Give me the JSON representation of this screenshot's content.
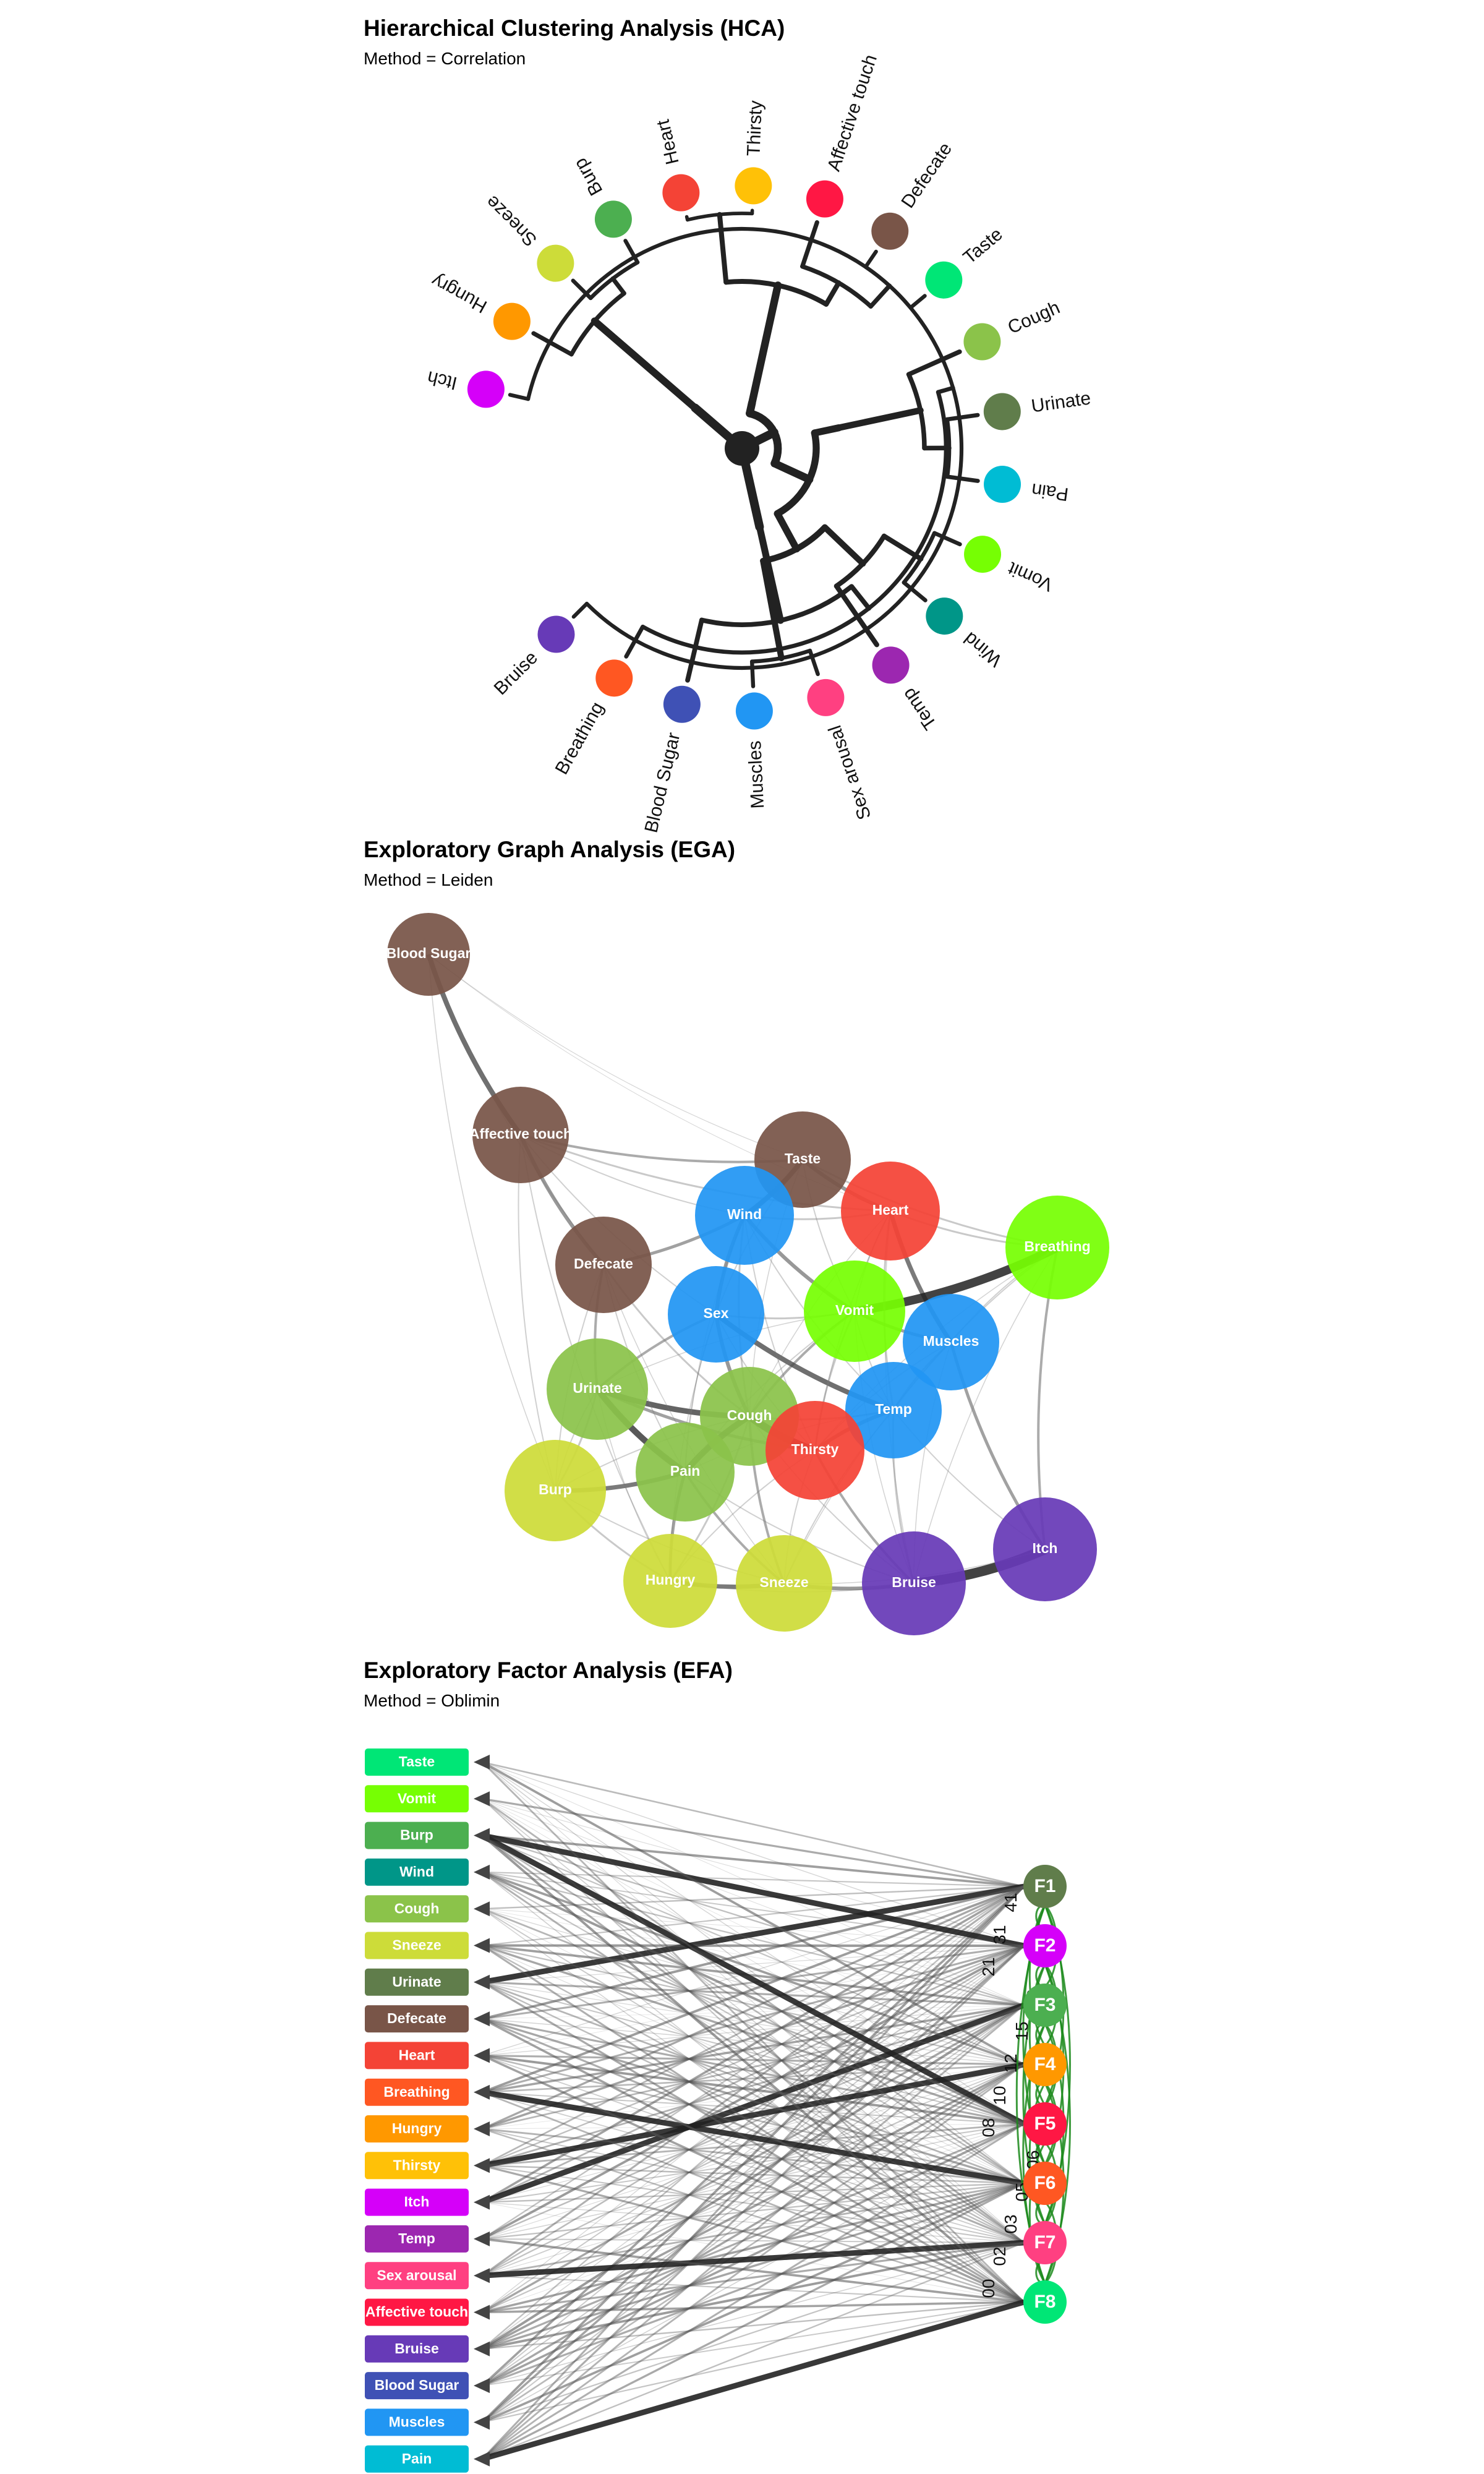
{
  "colors": {
    "Taste": "#00E676",
    "Vomit": "#76FF03",
    "Burp": "#4CAF50",
    "Wind": "#009688",
    "Cough": "#8BC34A",
    "Sneeze": "#CDDC39",
    "Urinate": "#607D4B",
    "Defecate": "#795548",
    "Heart": "#F44336",
    "Breathing": "#FF5722",
    "Hungry": "#FF9800",
    "Thirsty": "#FFC107",
    "Itch": "#D500F9",
    "Temp": "#9C27B0",
    "Sex arousal": "#FF4081",
    "Affective touch": "#FF1744",
    "Bruise": "#673AB7",
    "Blood Sugar": "#3F51B5",
    "Muscles": "#2196F3",
    "Pain": "#00BCD4",
    "F1": "#607D4B",
    "F2": "#D500F9",
    "F3": "#4CAF50",
    "F4": "#FF9800",
    "F5": "#FF1744",
    "F6": "#FF5722",
    "F7": "#FF4081",
    "F8": "#00E676",
    "comm_brown": "#795548",
    "comm_blue": "#2196F3",
    "comm_red": "#F44336",
    "comm_lime": "#76FF03",
    "comm_green": "#8BC34A",
    "comm_yellow": "#CDDC39",
    "comm_purple": "#673AB7"
  },
  "hca": {
    "title": "Hierarchical Clustering Analysis (HCA)",
    "subtitle": "Method = Correlation",
    "leaves": [
      "Itch",
      "Hungry",
      "Sneeze",
      "Burp",
      "Heart",
      "Thirsty",
      "Affective touch",
      "Defecate",
      "Taste",
      "Cough",
      "Urinate",
      "Pain",
      "Vomit",
      "Wind",
      "Temp",
      "Sex arousal",
      "Muscles",
      "Blood Sugar",
      "Breathing",
      "Bruise"
    ]
  },
  "ega": {
    "title": "Exploratory Graph Analysis (EGA)",
    "subtitle": "Method = Leiden",
    "nodes": [
      {
        "label": "Blood Sugar",
        "community": "comm_brown"
      },
      {
        "label": "Affective touch",
        "community": "comm_brown"
      },
      {
        "label": "Taste",
        "community": "comm_brown"
      },
      {
        "label": "Defecate",
        "community": "comm_brown"
      },
      {
        "label": "Wind",
        "community": "comm_blue"
      },
      {
        "label": "Heart",
        "community": "comm_red"
      },
      {
        "label": "Breathing",
        "community": "comm_lime"
      },
      {
        "label": "Sex",
        "community": "comm_blue"
      },
      {
        "label": "Vomit",
        "community": "comm_lime"
      },
      {
        "label": "Muscles",
        "community": "comm_blue"
      },
      {
        "label": "Urinate",
        "community": "comm_green"
      },
      {
        "label": "Cough",
        "community": "comm_green"
      },
      {
        "label": "Temp",
        "community": "comm_blue"
      },
      {
        "label": "Thirsty",
        "community": "comm_red"
      },
      {
        "label": "Burp",
        "community": "comm_yellow"
      },
      {
        "label": "Pain",
        "community": "comm_green"
      },
      {
        "label": "Hungry",
        "community": "comm_yellow"
      },
      {
        "label": "Sneeze",
        "community": "comm_yellow"
      },
      {
        "label": "Bruise",
        "community": "comm_purple"
      },
      {
        "label": "Itch",
        "community": "comm_purple"
      }
    ]
  },
  "efa": {
    "title": "Exploratory Factor Analysis (EFA)",
    "subtitle": "Method = Oblimin",
    "items": [
      "Taste",
      "Vomit",
      "Burp",
      "Wind",
      "Cough",
      "Sneeze",
      "Urinate",
      "Defecate",
      "Heart",
      "Breathing",
      "Hungry",
      "Thirsty",
      "Itch",
      "Temp",
      "Sex arousal",
      "Affective touch",
      "Bruise",
      "Blood Sugar",
      "Muscles",
      "Pain"
    ],
    "factors": [
      "F1",
      "F2",
      "F3",
      "F4",
      "F5",
      "F6",
      "F7",
      "F8"
    ],
    "correlation_labels": [
      "00",
      "02",
      "03",
      "05",
      "06",
      "08",
      "10",
      "12",
      "15",
      "18",
      "21",
      "31",
      "41"
    ]
  }
}
